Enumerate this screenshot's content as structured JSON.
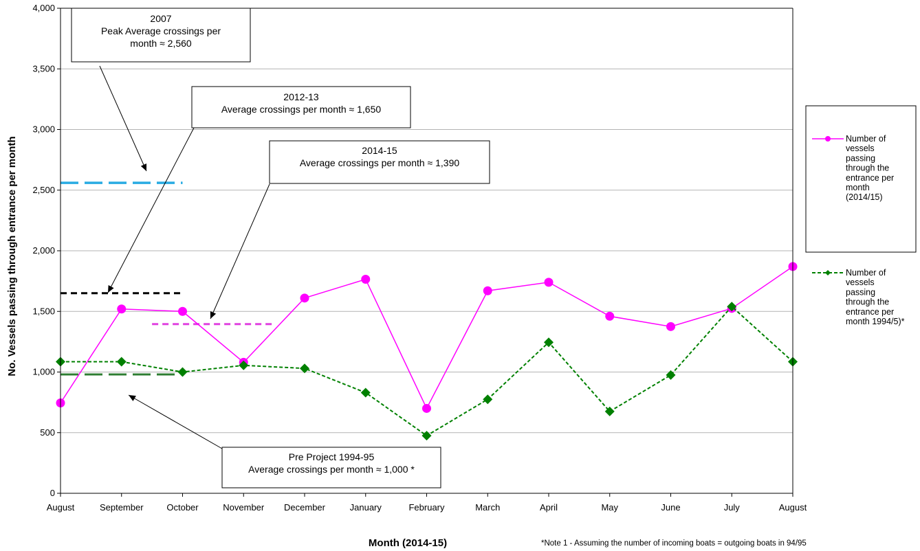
{
  "chart_data": {
    "type": "line",
    "title": "",
    "xlabel": "Month (2014-15)",
    "ylabel": "No. Vessels passing through entrance per month",
    "ylim": [
      0,
      4000
    ],
    "yticks": [
      0,
      500,
      1000,
      1500,
      2000,
      2500,
      3000,
      3500,
      4000
    ],
    "ytick_labels": [
      "0",
      "500",
      "1,000",
      "1,500",
      "2,000",
      "2,500",
      "3,000",
      "3,500",
      "4,000"
    ],
    "grid": "horizontal",
    "legend_position": "right",
    "categories": [
      "August",
      "September",
      "October",
      "November",
      "December",
      "January",
      "February",
      "March",
      "April",
      "May",
      "June",
      "July",
      "August"
    ],
    "series": [
      {
        "name": "Number of vessels passing through the entrance per month (2014/15)",
        "legend_lines": [
          "Number of",
          "vessels",
          "passing",
          "through the",
          "entrance per",
          "month",
          "(2014/15)"
        ],
        "color": "#ff00ff",
        "marker": "circle",
        "line_style": "solid",
        "values": [
          745,
          1520,
          1500,
          1080,
          1610,
          1765,
          700,
          1670,
          1740,
          1460,
          1375,
          1525,
          1870
        ]
      },
      {
        "name": "Number of vessels passing through the entrance per month 1994/5)*",
        "legend_lines": [
          "Number of",
          "vessels",
          "passing",
          "through the",
          "entrance per",
          "month 1994/5)*"
        ],
        "color": "#008000",
        "marker": "diamond",
        "line_style": "dashed",
        "values": [
          1085,
          1085,
          1000,
          1055,
          1030,
          830,
          475,
          775,
          1245,
          675,
          975,
          1540,
          1085
        ]
      }
    ],
    "reference_lines": [
      {
        "label": "2007 peak average",
        "value": 2560,
        "color": "#29abe2",
        "from": 0,
        "to": 2
      },
      {
        "label": "2012-13 average",
        "value": 1650,
        "color": "#000000",
        "from": 0,
        "to": 2
      },
      {
        "label": "2014-15 average",
        "value": 1395,
        "color": "#e040e0",
        "from": 1.5,
        "to": 3.5
      },
      {
        "label": "Pre Project 1994-95 average",
        "value": 980,
        "color": "#2e7d32",
        "from": 0,
        "to": 2
      }
    ],
    "annotations": [
      {
        "lines": [
          "2007",
          "Peak Average crossings per",
          "month ≈ 2,560"
        ]
      },
      {
        "lines": [
          "2012-13",
          "Average crossings per month ≈ 1,650"
        ]
      },
      {
        "lines": [
          "2014-15",
          "Average crossings per month ≈ 1,390"
        ]
      },
      {
        "lines": [
          "Pre Project 1994-95",
          "Average crossings per month ≈ 1,000 *"
        ]
      }
    ],
    "note": "*Note 1 - Assuming the number of incoming boats = outgoing boats in 94/95"
  }
}
